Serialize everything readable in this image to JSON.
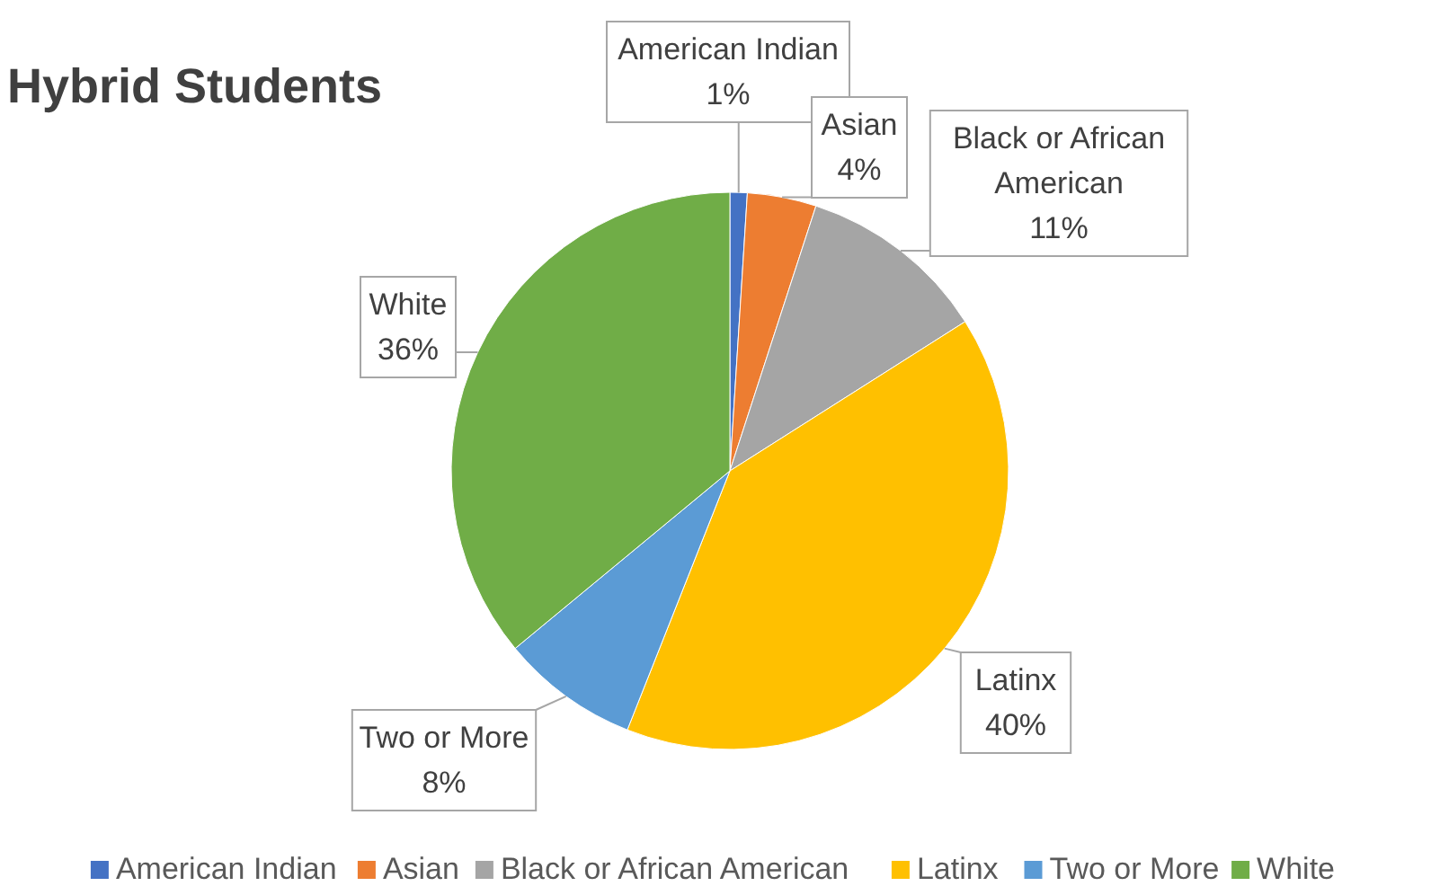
{
  "chart_data": {
    "type": "pie",
    "title": "Hybrid Students",
    "categories": [
      "American Indian",
      "Asian",
      "Black or African American",
      "Latinx",
      "Two or More",
      "White"
    ],
    "values": [
      1,
      4,
      11,
      40,
      8,
      36
    ],
    "value_labels": [
      "1%",
      "4%",
      "11%",
      "40%",
      "8%",
      "36%"
    ],
    "colors": [
      "#4472c4",
      "#ed7d31",
      "#a5a5a5",
      "#ffc000",
      "#5b9bd5",
      "#70ad47"
    ],
    "legend": "bottom"
  }
}
